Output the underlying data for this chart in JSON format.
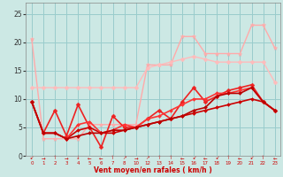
{
  "xlabel": "Vent moyen/en rafales ( km/h )",
  "background_color": "#cce8e4",
  "grid_color": "#99cccc",
  "x_vals": [
    0,
    1,
    2,
    3,
    4,
    5,
    6,
    7,
    8,
    10,
    12,
    13,
    14,
    15,
    16,
    17,
    18,
    19,
    20,
    21,
    22,
    23
  ],
  "ylim": [
    0,
    27
  ],
  "yticks": [
    0,
    5,
    10,
    15,
    20,
    25
  ],
  "series": [
    {
      "y": [
        20.5,
        3.0,
        3.0,
        3.0,
        3.0,
        5.5,
        5.5,
        5.5,
        5.5,
        5.5,
        16.0,
        16.0,
        16.0,
        21.0,
        21.0,
        18.0,
        18.0,
        18.0,
        18.0,
        23.0,
        23.0,
        19.0
      ],
      "color": "#ffaaaa",
      "lw": 1.0,
      "marker": "*",
      "ms": 3.5
    },
    {
      "y": [
        12.0,
        12.0,
        12.0,
        12.0,
        12.0,
        12.0,
        12.0,
        12.0,
        12.0,
        12.0,
        15.5,
        16.0,
        16.5,
        17.0,
        17.5,
        17.0,
        16.5,
        16.5,
        16.5,
        16.5,
        16.5,
        13.0
      ],
      "color": "#ffbbbb",
      "lw": 1.0,
      "marker": "D",
      "ms": 2.5
    },
    {
      "y": [
        9.5,
        4.0,
        8.0,
        3.5,
        9.0,
        5.0,
        1.5,
        7.0,
        5.0,
        5.0,
        6.5,
        8.0,
        6.5,
        9.5,
        12.0,
        9.5,
        10.5,
        11.5,
        12.0,
        12.5,
        9.5,
        8.0
      ],
      "color": "#ee2222",
      "lw": 1.2,
      "marker": "D",
      "ms": 2.5
    },
    {
      "y": [
        9.5,
        4.0,
        4.0,
        3.0,
        4.5,
        5.0,
        4.0,
        4.0,
        4.5,
        5.0,
        5.5,
        6.0,
        6.5,
        7.0,
        7.5,
        8.0,
        8.5,
        9.0,
        9.5,
        10.0,
        9.5,
        8.0
      ],
      "color": "#cc0000",
      "lw": 1.2,
      "marker": "D",
      "ms": 2.0
    },
    {
      "y": [
        9.5,
        4.0,
        4.0,
        3.0,
        5.5,
        6.0,
        4.0,
        4.5,
        5.5,
        5.0,
        6.5,
        7.0,
        8.0,
        9.0,
        10.0,
        10.0,
        11.0,
        11.0,
        11.5,
        12.0,
        9.5,
        8.0
      ],
      "color": "#ff3333",
      "lw": 1.2,
      "marker": "D",
      "ms": 2.0
    },
    {
      "y": [
        9.5,
        4.0,
        4.0,
        3.0,
        3.5,
        4.0,
        4.0,
        4.5,
        4.5,
        5.0,
        5.5,
        6.0,
        6.5,
        7.0,
        8.0,
        8.5,
        10.5,
        11.0,
        11.0,
        12.0,
        9.5,
        8.0
      ],
      "color": "#bb0000",
      "lw": 1.2,
      "marker": "D",
      "ms": 2.0
    }
  ],
  "arrow_row": [
    "↙",
    "→",
    "↑",
    "→",
    "↓",
    "←",
    "←",
    "↑",
    "↗",
    "→",
    "↗",
    "↑",
    "↑",
    "←",
    "↙",
    "←",
    "↙",
    "↑",
    "←",
    "↙",
    "↑",
    "←"
  ],
  "x_labels": [
    "0",
    "1",
    "2",
    "3",
    "4",
    "5",
    "6",
    "7",
    "8",
    "10",
    "12",
    "13",
    "14",
    "15",
    "16",
    "17",
    "18",
    "19",
    "20",
    "21",
    "22",
    "23"
  ]
}
